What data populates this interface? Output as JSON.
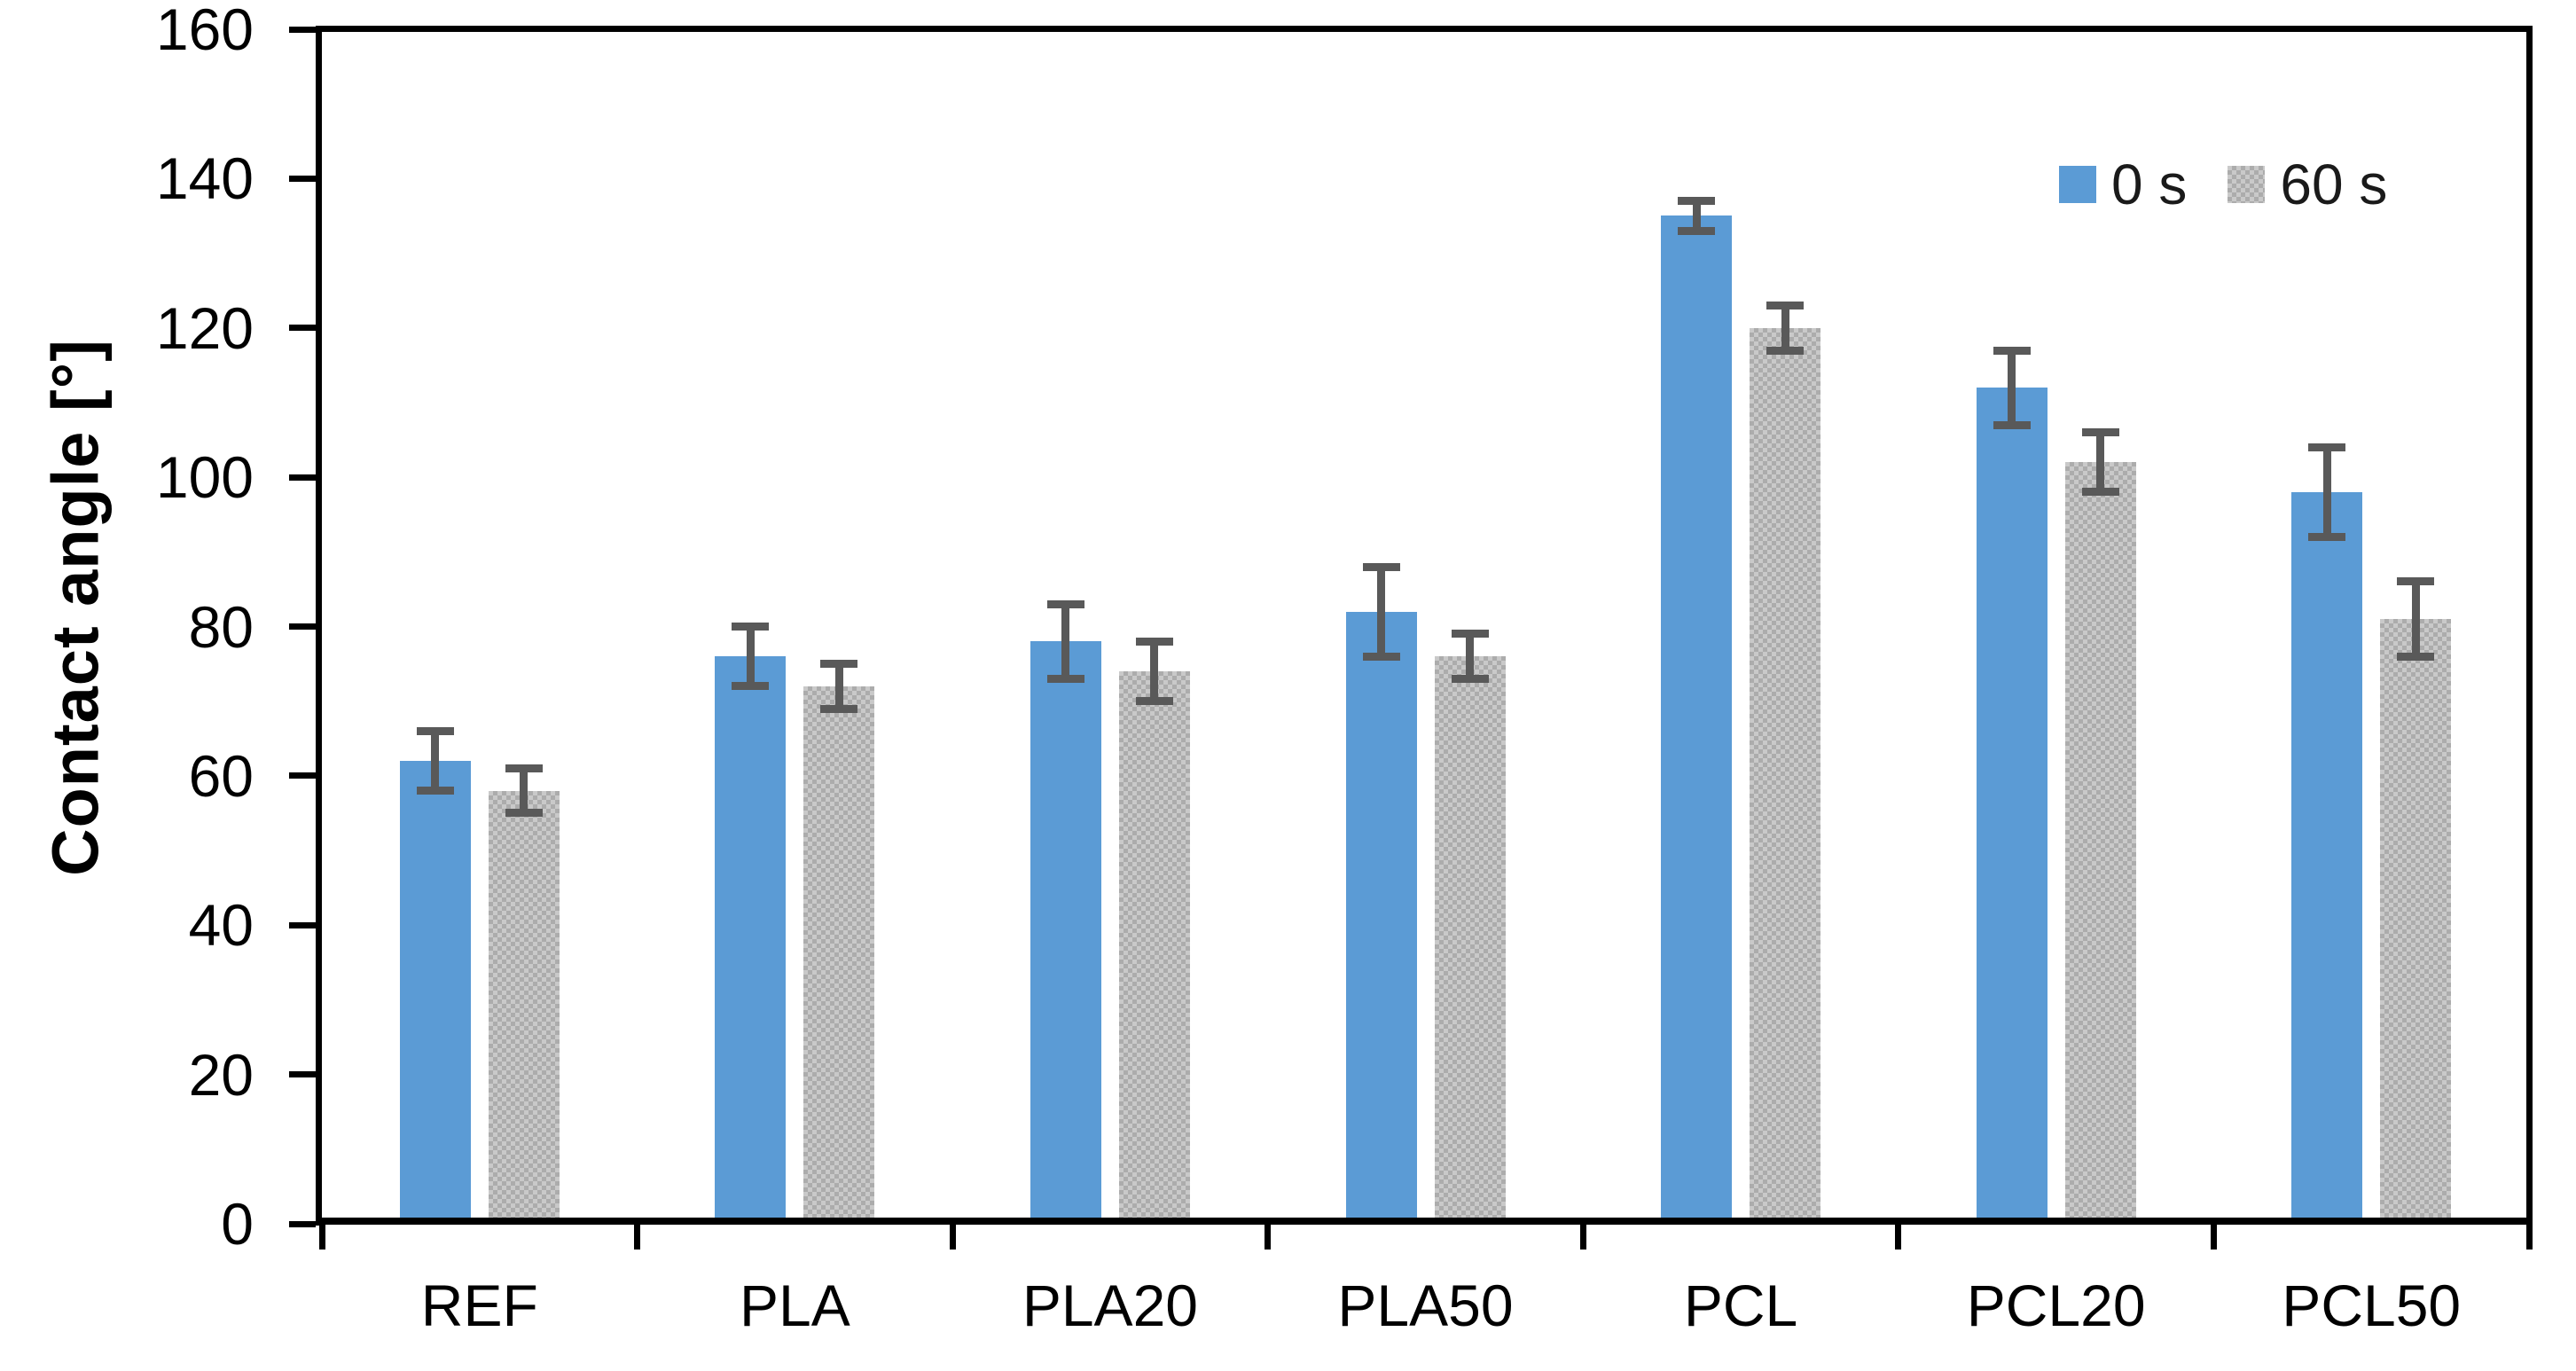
{
  "chart_data": {
    "type": "bar",
    "title": "",
    "ylabel": "Contact angle [°]",
    "xlabel": "",
    "ylim": [
      0,
      160
    ],
    "ytick_step": 20,
    "ytick_labels": [
      "0",
      "20",
      "40",
      "60",
      "80",
      "100",
      "120",
      "140",
      "160"
    ],
    "categories": [
      "REF",
      "PLA",
      "PLA20",
      "PLA50",
      "PCL",
      "PCL20",
      "PCL50"
    ],
    "series": [
      {
        "name": "0 s",
        "fill": "solid",
        "color": "#5B9BD5",
        "values": [
          62,
          76,
          78,
          82,
          135,
          112,
          98
        ],
        "errors": [
          4,
          4,
          5,
          6,
          2,
          5,
          6
        ]
      },
      {
        "name": "60 s",
        "fill": "checker-pattern",
        "color": "#BDBDBD",
        "pattern_light": "#C9C9C9",
        "pattern_dark": "#ACACAC",
        "values": [
          58,
          72,
          74,
          76,
          120,
          102,
          81
        ],
        "errors": [
          3,
          3,
          4,
          3,
          3,
          4,
          5
        ]
      }
    ],
    "error_bar_color": "#595959",
    "axis_color": "#000000",
    "text_color": "#000000",
    "background": "#FFFFFF",
    "grid": false,
    "legend_position": "top-right"
  }
}
